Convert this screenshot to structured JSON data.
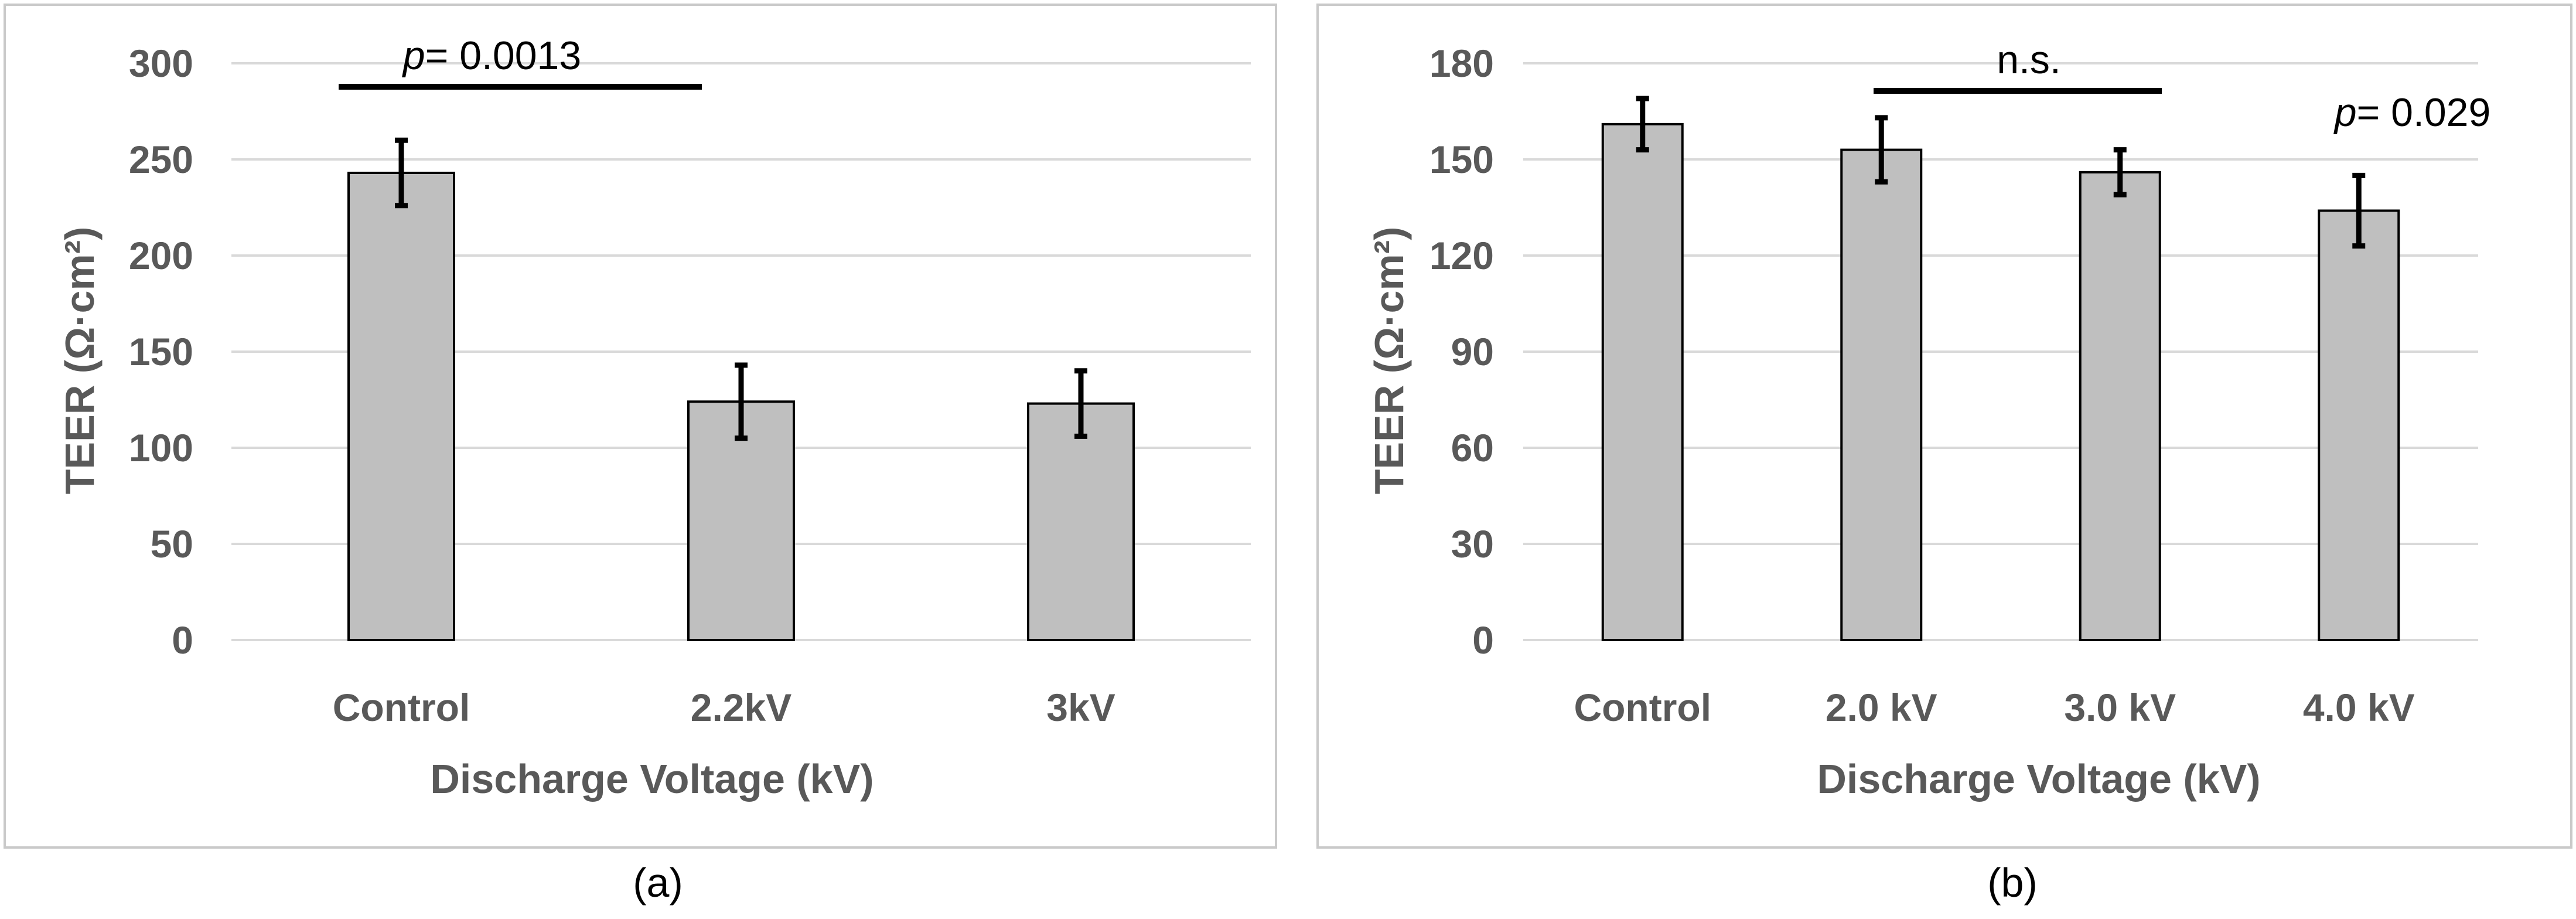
{
  "chart_data": [
    {
      "type": "bar",
      "caption": "(a)",
      "categories": [
        "Control",
        "2.2kV",
        "3kV"
      ],
      "values": [
        243,
        124,
        123
      ],
      "errors": [
        17,
        19,
        17
      ],
      "ylabel": "TEER (Ω·cm²)",
      "xlabel": "Discharge Voltage (kV)",
      "ylim": [
        0,
        300
      ],
      "yticks": [
        0,
        50,
        100,
        150,
        200,
        250,
        300
      ],
      "grid": true,
      "annotations": [
        {
          "text_italic": "p",
          "text": "= 0.0013",
          "type": "bracket",
          "from_index": 0,
          "to_index": 1
        }
      ]
    },
    {
      "type": "bar",
      "caption": "(b)",
      "categories": [
        "Control",
        "2.0 kV",
        "3.0 kV",
        "4.0 kV"
      ],
      "values": [
        161,
        153,
        146,
        134
      ],
      "errors": [
        8,
        10,
        7,
        11
      ],
      "ylabel": "TEER (Ω·cm²)",
      "xlabel": "Discharge Voltage (kV)",
      "ylim": [
        0,
        180
      ],
      "yticks": [
        0,
        30,
        60,
        90,
        120,
        150,
        180
      ],
      "grid": true,
      "annotations": [
        {
          "text_italic": "",
          "text": "n.s.",
          "type": "bracket",
          "from_index": 1,
          "to_index": 2
        },
        {
          "text_italic": "p",
          "text": "= 0.029",
          "type": "label",
          "index": 3
        }
      ]
    }
  ]
}
